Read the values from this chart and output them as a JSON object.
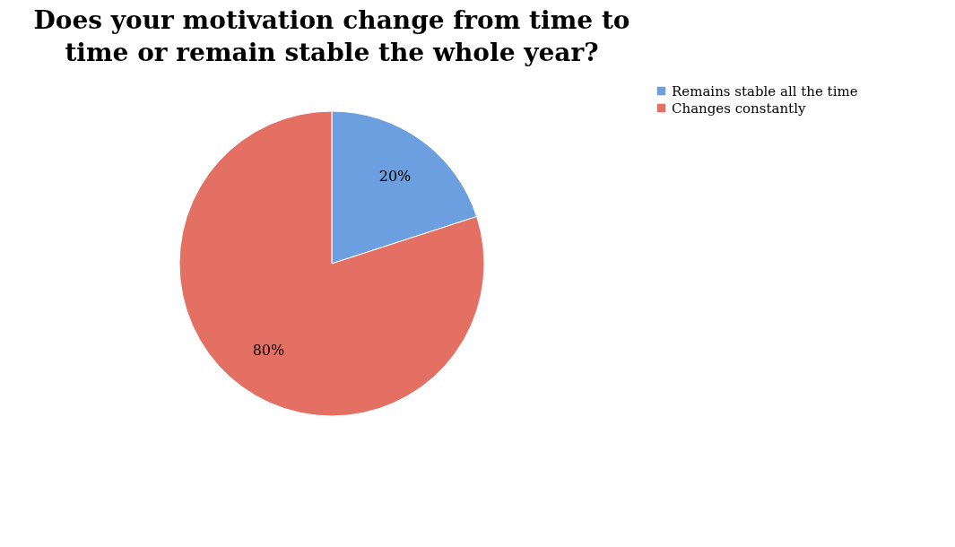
{
  "chart_data": {
    "type": "pie",
    "title": "Does your motivation change from time to time or remain stable the whole year?",
    "categories": [
      "Remains stable all the time",
      "Changes constantly"
    ],
    "values": [
      20,
      80
    ],
    "colors": [
      "#6c9fe0",
      "#e46f63"
    ],
    "value_labels": [
      "20%",
      "80%"
    ],
    "legend": "right"
  }
}
